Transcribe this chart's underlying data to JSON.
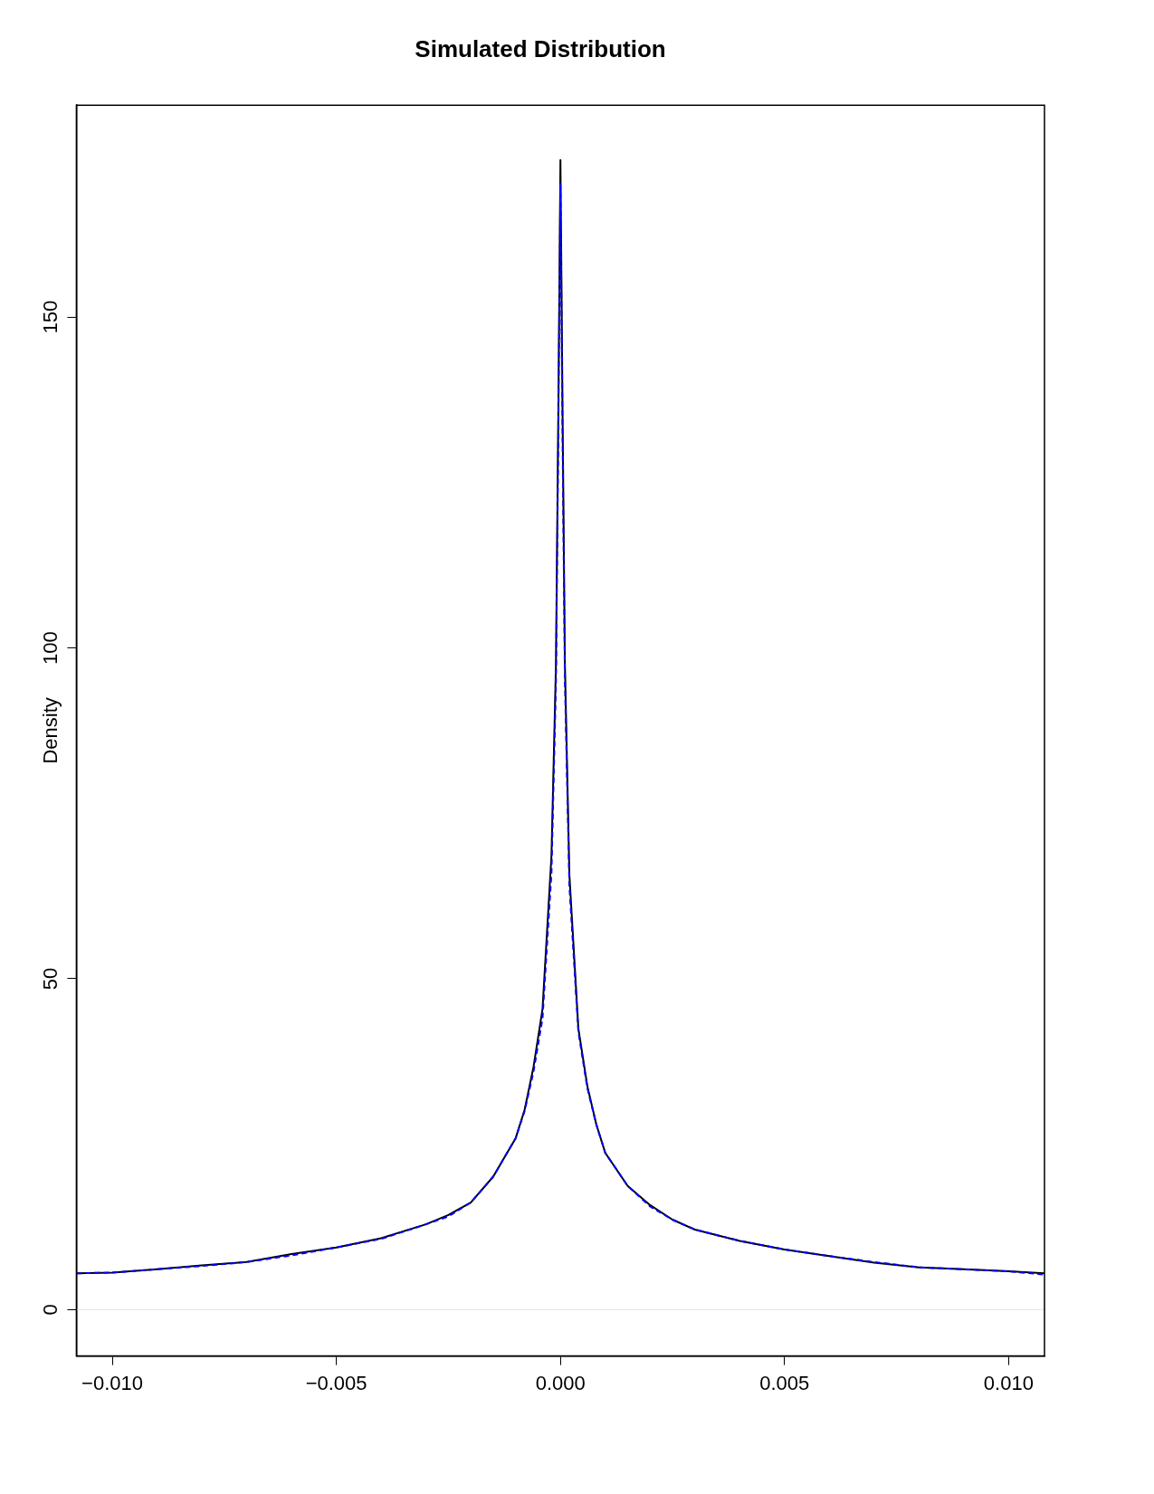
{
  "chart_data": {
    "type": "line",
    "title": "Simulated Distribution",
    "ylabel": "Density",
    "xlim": [
      -0.0108,
      0.0108
    ],
    "ylim": [
      -7,
      182
    ],
    "xticks": [
      {
        "value": -0.01,
        "label": "−0.010"
      },
      {
        "value": -0.005,
        "label": "−0.005"
      },
      {
        "value": 0,
        "label": "0.000"
      },
      {
        "value": 0.005,
        "label": "0.005"
      },
      {
        "value": 0.01,
        "label": "0.010"
      }
    ],
    "yticks": [
      0,
      50,
      100,
      150
    ],
    "grid": false,
    "legend": false,
    "marker": "none",
    "ref_lines": [
      {
        "axis": "y",
        "value": 0,
        "color": "#e6e6e6"
      }
    ],
    "series": [
      {
        "color": "#000000",
        "line_style": "solid",
        "x": [
          -0.0108,
          -0.01,
          -0.009,
          -0.008,
          -0.007,
          -0.006,
          -0.005,
          -0.004,
          -0.003,
          -0.0025,
          -0.002,
          -0.0015,
          -0.001,
          -0.0008,
          -0.0006,
          -0.0004,
          -0.0002,
          -0.0001,
          -5e-05,
          0,
          5e-05,
          0.0001,
          0.0002,
          0.0004,
          0.0006,
          0.0008,
          0.001,
          0.0015,
          0.002,
          0.0025,
          0.003,
          0.004,
          0.005,
          0.006,
          0.007,
          0.008,
          0.009,
          0.01,
          0.0108
        ],
        "values": [
          5.5,
          5.6,
          6.1,
          6.7,
          7.2,
          8.4,
          9.4,
          10.8,
          12.9,
          14.3,
          16.2,
          20.1,
          25.9,
          30.2,
          36.7,
          45.4,
          68.6,
          97.5,
          133.6,
          173.7,
          133.6,
          97.5,
          65.7,
          42.5,
          33.8,
          28,
          23.7,
          18.7,
          15.8,
          13.6,
          12.1,
          10.4,
          9.1,
          8.1,
          7.1,
          6.4,
          6.1,
          5.8,
          5.5
        ]
      },
      {
        "color": "#0000ff",
        "line_style": "dashed",
        "x": [
          -0.0108,
          -0.01,
          -0.009,
          -0.008,
          -0.007,
          -0.006,
          -0.005,
          -0.004,
          -0.003,
          -0.0025,
          -0.002,
          -0.0015,
          -0.001,
          -0.0008,
          -0.0006,
          -0.0004,
          -0.0002,
          -0.0001,
          -5e-05,
          0,
          5e-05,
          0.0001,
          0.0002,
          0.0004,
          0.0006,
          0.0008,
          0.001,
          0.0015,
          0.002,
          0.0025,
          0.003,
          0.004,
          0.005,
          0.006,
          0.007,
          0.008,
          0.009,
          0.01,
          0.0108
        ],
        "values": [
          5.5,
          5.6,
          6.1,
          6.6,
          7.2,
          8.2,
          9.4,
          10.7,
          12.9,
          14.1,
          16.2,
          20.1,
          25.9,
          30,
          36,
          44,
          66,
          95,
          130,
          170,
          130,
          95,
          64,
          42,
          33.5,
          28,
          23.7,
          18.7,
          15.6,
          13.6,
          12.1,
          10.4,
          9.1,
          8.1,
          7.2,
          6.4,
          6.1,
          5.8,
          5.3
        ]
      }
    ]
  }
}
